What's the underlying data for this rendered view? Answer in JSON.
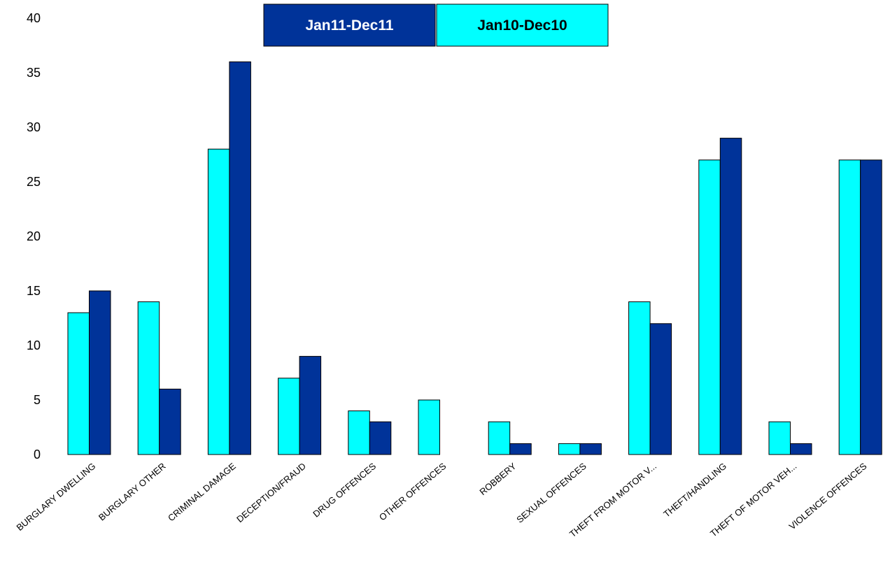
{
  "chart_data": {
    "type": "bar",
    "title": "",
    "xlabel": "",
    "ylabel": "",
    "ylim": [
      0,
      40
    ],
    "yticks": [
      0,
      5,
      10,
      15,
      20,
      25,
      30,
      35,
      40
    ],
    "grid": false,
    "legend_position": "top-center",
    "categories": [
      "BURGLARY DWELLING",
      "BURGLARY OTHER",
      "CRIMINAL DAMAGE",
      "DECEPTION/FRAUD",
      "DRUG OFFENCES",
      "OTHER OFFENCES",
      "ROBBERY",
      "SEXUAL OFFENCES",
      "THEFT FROM MOTOR V...",
      "THEFT/HANDLING",
      "THEFT OF MOTOR VEH...",
      "VIOLENCE OFFENCES"
    ],
    "series": [
      {
        "name": "Jan10-Dec10",
        "color": "#00FFFF",
        "legend_text_color": "#000000",
        "values": [
          13,
          14,
          28,
          7,
          4,
          5,
          3,
          1,
          14,
          27,
          3,
          27
        ]
      },
      {
        "name": "Jan11-Dec11",
        "color": "#003399",
        "legend_text_color": "#FFFFFF",
        "values": [
          15,
          6,
          36,
          9,
          3,
          0,
          1,
          1,
          12,
          29,
          1,
          27
        ]
      }
    ],
    "legend_order": [
      1,
      0
    ]
  }
}
